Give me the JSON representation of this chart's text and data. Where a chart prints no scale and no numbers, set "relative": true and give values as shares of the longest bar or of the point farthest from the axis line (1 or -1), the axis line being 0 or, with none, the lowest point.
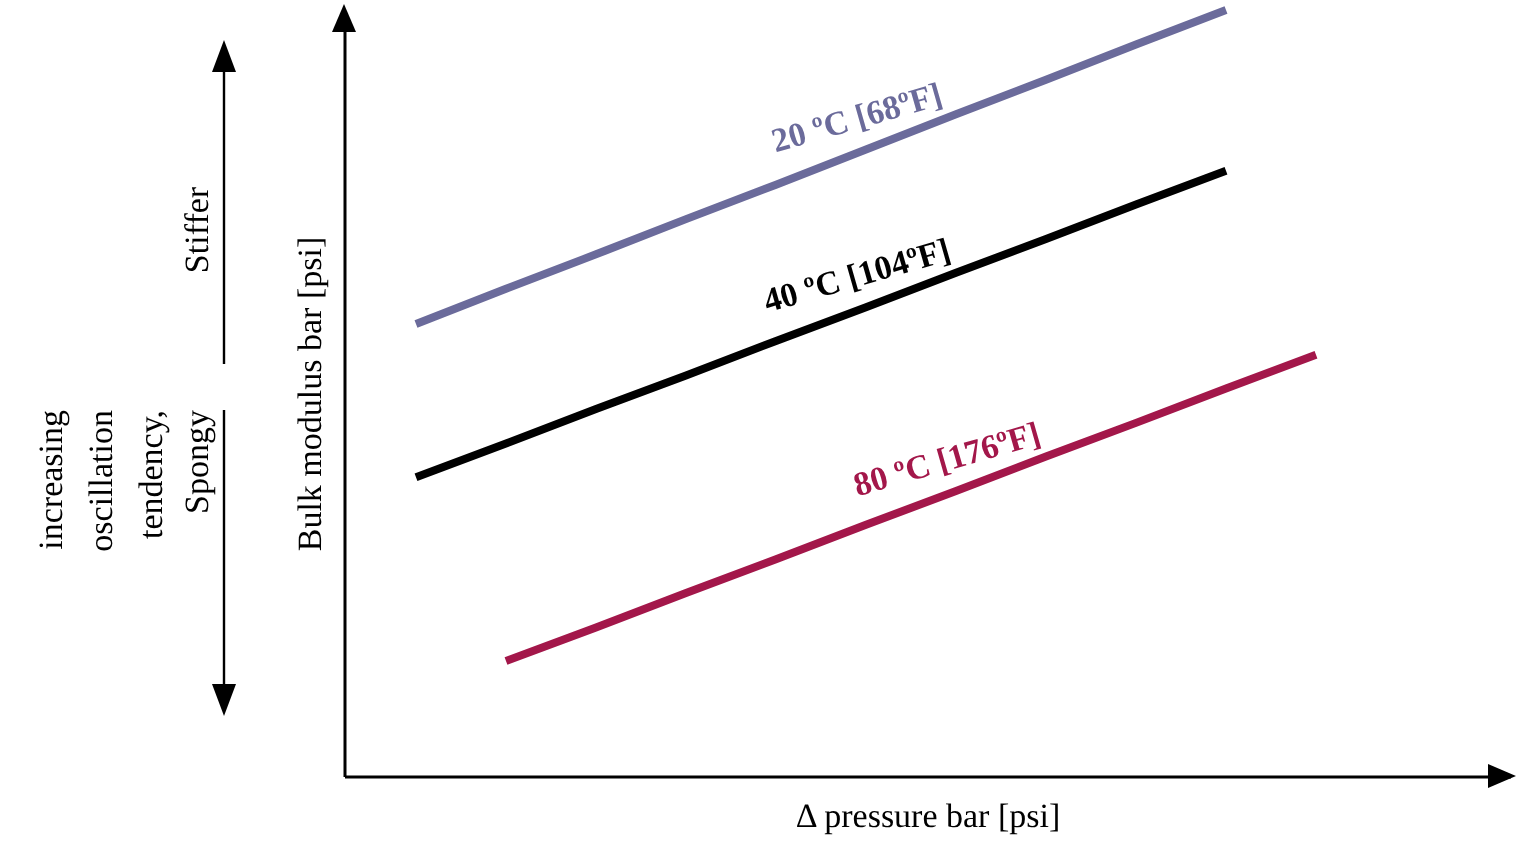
{
  "chart_data": {
    "type": "line",
    "relative": true,
    "xlabel": "Δ pressure    bar [psi]",
    "ylabel": "Bulk modulus    bar [psi]",
    "annotations": [
      "Stiffer",
      "increasing oscillation tendency, Spongy"
    ],
    "categories": [
      null,
      null,
      null,
      null,
      null,
      null,
      null,
      null,
      null,
      null,
      null
    ],
    "series": [
      {
        "name": "20 ºC [68ºF]",
        "color": "#6b6b9b",
        "values": [
          0.59,
          0.636,
          0.681,
          0.727,
          0.772,
          0.818,
          0.864,
          0.909,
          0.955,
          1.0,
          null
        ]
      },
      {
        "name": "40 ºC [104ºF]",
        "color": "#000000",
        "values": [
          0.39,
          0.434,
          0.479,
          0.523,
          0.568,
          0.612,
          0.657,
          0.701,
          0.746,
          0.79,
          null
        ]
      },
      {
        "name": "80 ºC [176ºF]",
        "color": "#a3174a",
        "values": [
          null,
          0.15,
          0.194,
          0.239,
          0.283,
          0.328,
          0.372,
          0.417,
          0.461,
          0.506,
          0.55
        ]
      }
    ],
    "tick_labels": false,
    "grid": false,
    "marker": "none",
    "line_style": "solid"
  }
}
